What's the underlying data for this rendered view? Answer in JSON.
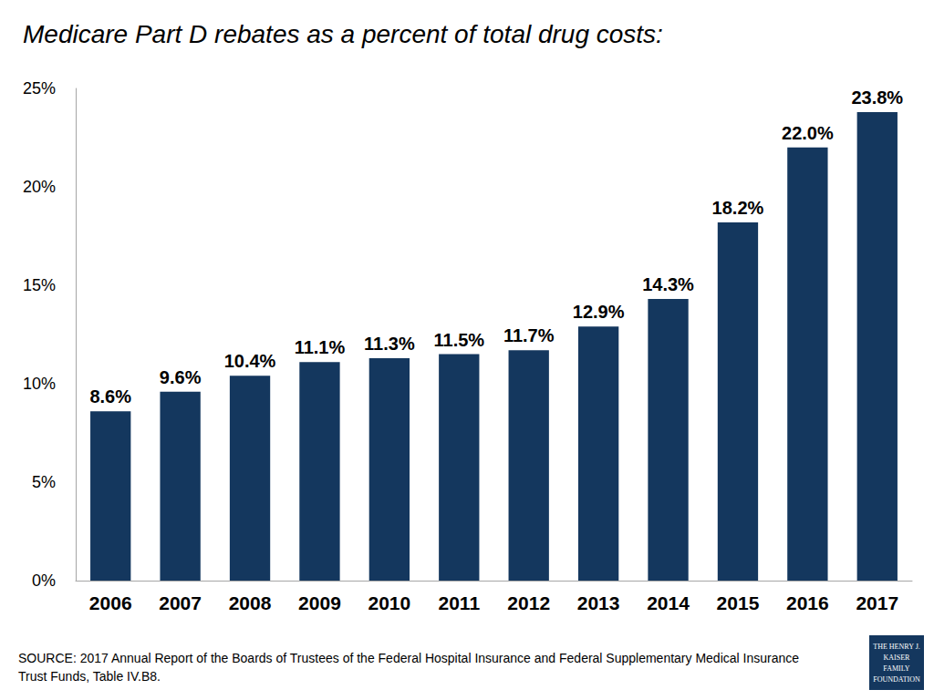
{
  "chart_data": {
    "type": "bar",
    "title": "Medicare Part D rebates as a percent of total drug costs:",
    "categories": [
      "2006",
      "2007",
      "2008",
      "2009",
      "2010",
      "2011",
      "2012",
      "2013",
      "2014",
      "2015",
      "2016",
      "2017"
    ],
    "values": [
      8.6,
      9.6,
      10.4,
      11.1,
      11.3,
      11.5,
      11.7,
      12.9,
      14.3,
      18.2,
      22.0,
      23.8
    ],
    "value_labels": [
      "8.6%",
      "9.6%",
      "10.4%",
      "11.1%",
      "11.3%",
      "11.5%",
      "11.7%",
      "12.9%",
      "14.3%",
      "18.2%",
      "22.0%",
      "23.8%"
    ],
    "color": "#14375e",
    "ylim": [
      0,
      25
    ],
    "yticks": [
      {
        "value": 0,
        "label": "0%"
      },
      {
        "value": 5,
        "label": "5%"
      },
      {
        "value": 10,
        "label": "10%"
      },
      {
        "value": 15,
        "label": "15%"
      },
      {
        "value": 20,
        "label": "20%"
      },
      {
        "value": 25,
        "label": "25%"
      }
    ],
    "grid": false,
    "data_labels": true,
    "source": "SOURCE: 2017 Annual Report of the Boards of Trustees of the Federal Hospital Insurance and Federal Supplementary Medical Insurance Trust Funds, Table IV.B8.",
    "logo": [
      "THE HENRY J.",
      "KAISER",
      "FAMILY",
      "FOUNDATION"
    ]
  }
}
